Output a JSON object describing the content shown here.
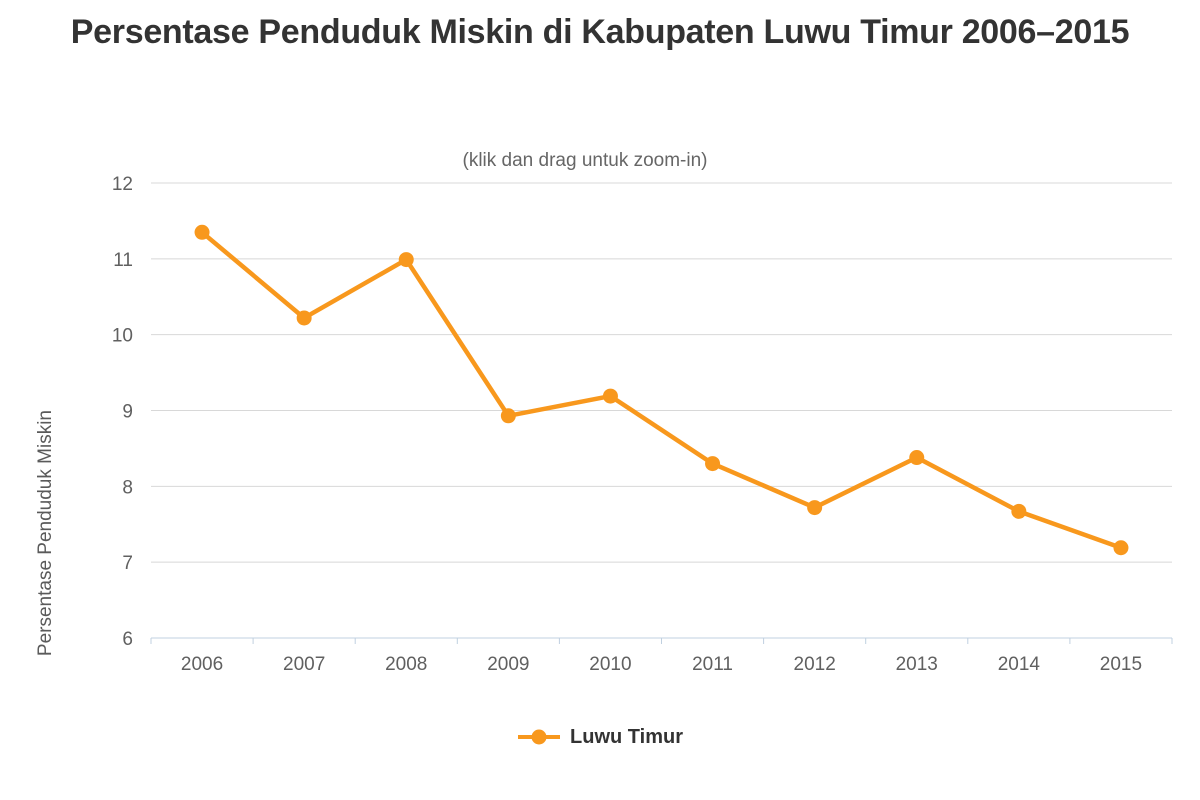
{
  "title": "Persentase Penduduk Miskin di Kabupaten Luwu Timur 2006–2015",
  "subtitle": "(klik dan drag untuk zoom-in)",
  "legend": {
    "series_label": "Luwu Timur"
  },
  "colors": {
    "series": "#F8981D",
    "title_text": "#333333",
    "subtitle_text": "#666666",
    "axis_label": "#606060",
    "axis_title": "#5A5A5A",
    "gridline": "#D8D8D8",
    "axis_line": "#C0D0E0",
    "legend_text": "#333333",
    "background": "#FFFFFF"
  },
  "chart_data": {
    "type": "line",
    "title": "Persentase Penduduk Miskin di Kabupaten Luwu Timur 2006–2015",
    "subtitle": "(klik dan drag untuk zoom-in)",
    "categories": [
      "2006",
      "2007",
      "2008",
      "2009",
      "2010",
      "2011",
      "2012",
      "2013",
      "2014",
      "2015"
    ],
    "series": [
      {
        "name": "Luwu Timur",
        "values": [
          11.35,
          10.22,
          10.99,
          8.93,
          9.19,
          8.3,
          7.72,
          8.38,
          7.67,
          7.19
        ],
        "color": "#F8981D"
      }
    ],
    "xlabel": "",
    "ylabel": "Persentase Penduduk Miskin",
    "ylim": [
      6,
      12
    ],
    "ytick_step": 1,
    "grid": true,
    "legend_position": "bottom",
    "marker": "circle"
  }
}
